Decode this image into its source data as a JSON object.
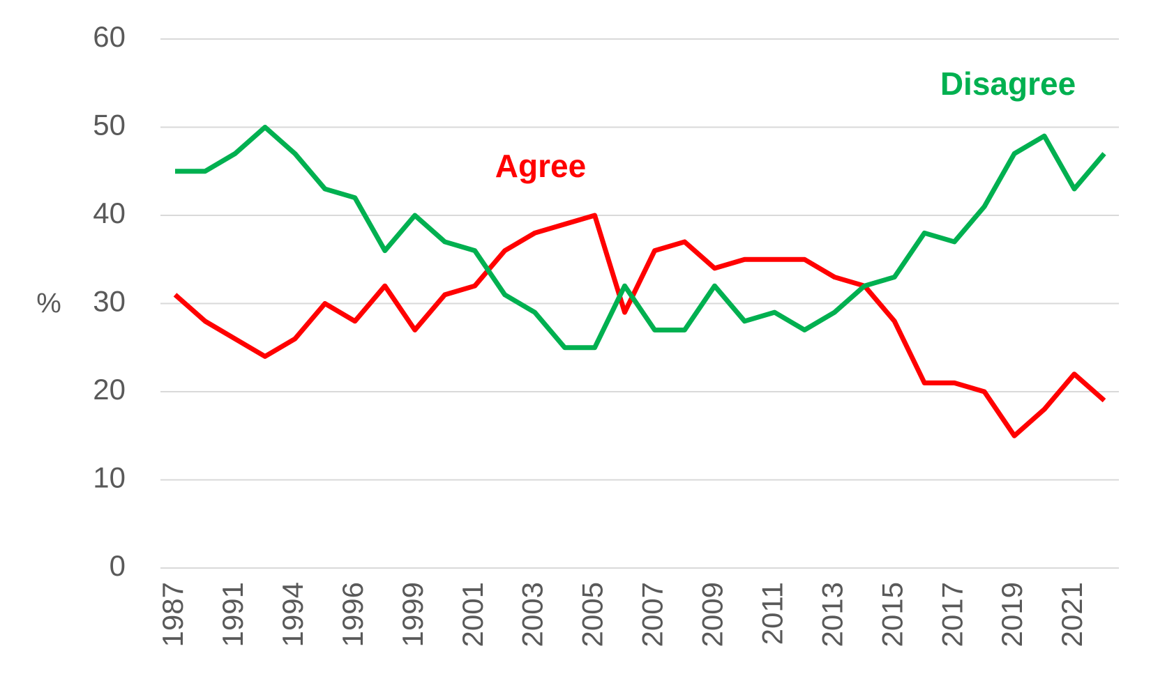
{
  "chart_data": {
    "type": "line",
    "ylabel": "%",
    "categories": [
      "1987",
      null,
      "1991",
      null,
      "1994",
      null,
      "1996",
      null,
      "1999",
      null,
      "2001",
      null,
      "2003",
      null,
      "2005",
      null,
      "2007",
      null,
      "2009",
      null,
      "2011",
      null,
      "2013",
      null,
      "2015",
      null,
      "2017",
      null,
      "2019",
      null,
      "2021",
      null
    ],
    "series": [
      {
        "name": "Agree",
        "color": "#ff0000",
        "values": [
          31,
          28,
          26,
          24,
          26,
          30,
          28,
          32,
          27,
          31,
          32,
          36,
          38,
          39,
          40,
          29,
          36,
          37,
          34,
          35,
          35,
          35,
          33,
          32,
          28,
          21,
          21,
          20,
          15,
          18,
          22,
          19
        ]
      },
      {
        "name": "Disagree",
        "color": "#00b050",
        "values": [
          45,
          45,
          47,
          50,
          47,
          43,
          42,
          36,
          40,
          37,
          36,
          31,
          29,
          25,
          25,
          32,
          27,
          27,
          32,
          28,
          29,
          27,
          29,
          32,
          33,
          38,
          37,
          41,
          47,
          49,
          43,
          47
        ]
      }
    ],
    "ylim": [
      0,
      60
    ],
    "yticks": [
      0,
      10,
      20,
      30,
      40,
      50,
      60
    ],
    "grid": true
  }
}
